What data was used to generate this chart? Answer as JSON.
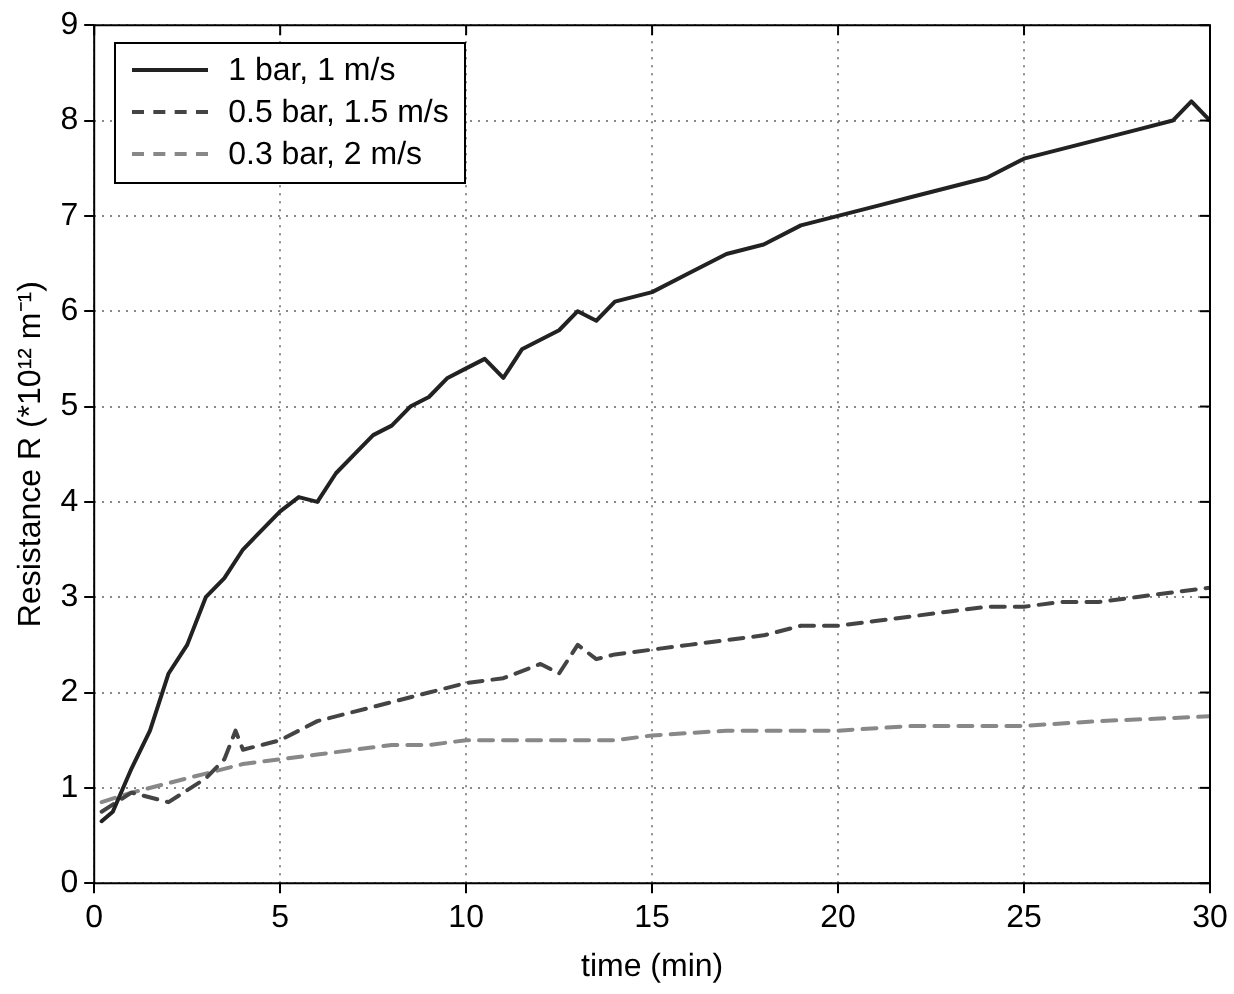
{
  "chart_data": {
    "type": "line",
    "xlabel": "time (min)",
    "ylabel": "Resistance R (*10¹² m⁻¹)",
    "xlim": [
      0,
      30
    ],
    "xticks": [
      0,
      5,
      10,
      15,
      20,
      25,
      30
    ],
    "ylim": [
      0,
      9
    ],
    "yticks": [
      0,
      1,
      2,
      3,
      4,
      5,
      6,
      7,
      8,
      9
    ],
    "grid": true,
    "legend": "top left",
    "marker": "none",
    "series": [
      {
        "name": "1 bar, 1 m/s",
        "color": "#222222",
        "line_style": "solid",
        "x": [
          0.2,
          0.5,
          1,
          1.5,
          2,
          2.5,
          3,
          3.5,
          4,
          4.5,
          5,
          5.5,
          6,
          6.5,
          7,
          7.5,
          8,
          8.5,
          9,
          9.5,
          10,
          10.5,
          11,
          11.5,
          12,
          12.5,
          13,
          13.5,
          14,
          15,
          16,
          17,
          18,
          19,
          20,
          21,
          22,
          23,
          24,
          25,
          26,
          27,
          28,
          29,
          29.5,
          30
        ],
        "values": [
          0.65,
          0.75,
          1.2,
          1.6,
          2.2,
          2.5,
          3.0,
          3.2,
          3.5,
          3.7,
          3.9,
          4.05,
          4.0,
          4.3,
          4.5,
          4.7,
          4.8,
          5.0,
          5.1,
          5.3,
          5.4,
          5.5,
          5.3,
          5.6,
          5.7,
          5.8,
          6.0,
          5.9,
          6.1,
          6.2,
          6.4,
          6.6,
          6.7,
          6.9,
          7.0,
          7.1,
          7.2,
          7.3,
          7.4,
          7.6,
          7.7,
          7.8,
          7.9,
          8.0,
          8.2,
          8.0
        ]
      },
      {
        "name": "0.5 bar, 1.5 m/s",
        "color": "#444444",
        "line_style": "dashed",
        "x": [
          0.2,
          1,
          2,
          3,
          3.5,
          3.8,
          4,
          5,
          6,
          7,
          8,
          9,
          10,
          11,
          12,
          12.5,
          13,
          13.5,
          14,
          15,
          16,
          17,
          18,
          19,
          20,
          21,
          22,
          23,
          24,
          25,
          26,
          27,
          28,
          29,
          30
        ],
        "values": [
          0.75,
          0.95,
          0.85,
          1.1,
          1.3,
          1.6,
          1.4,
          1.5,
          1.7,
          1.8,
          1.9,
          2.0,
          2.1,
          2.15,
          2.3,
          2.2,
          2.5,
          2.35,
          2.4,
          2.45,
          2.5,
          2.55,
          2.6,
          2.7,
          2.7,
          2.75,
          2.8,
          2.85,
          2.9,
          2.9,
          2.95,
          2.95,
          3.0,
          3.05,
          3.1
        ]
      },
      {
        "name": "0.3 bar, 2 m/s",
        "color": "#888888",
        "line_style": "dashed",
        "x": [
          0.2,
          1,
          2,
          3,
          4,
          5,
          6,
          7,
          8,
          9,
          10,
          12,
          14,
          15,
          17,
          20,
          22,
          25,
          27,
          30
        ],
        "values": [
          0.85,
          0.95,
          1.05,
          1.15,
          1.25,
          1.3,
          1.35,
          1.4,
          1.45,
          1.45,
          1.5,
          1.5,
          1.5,
          1.55,
          1.6,
          1.6,
          1.65,
          1.65,
          1.7,
          1.75
        ]
      }
    ]
  }
}
